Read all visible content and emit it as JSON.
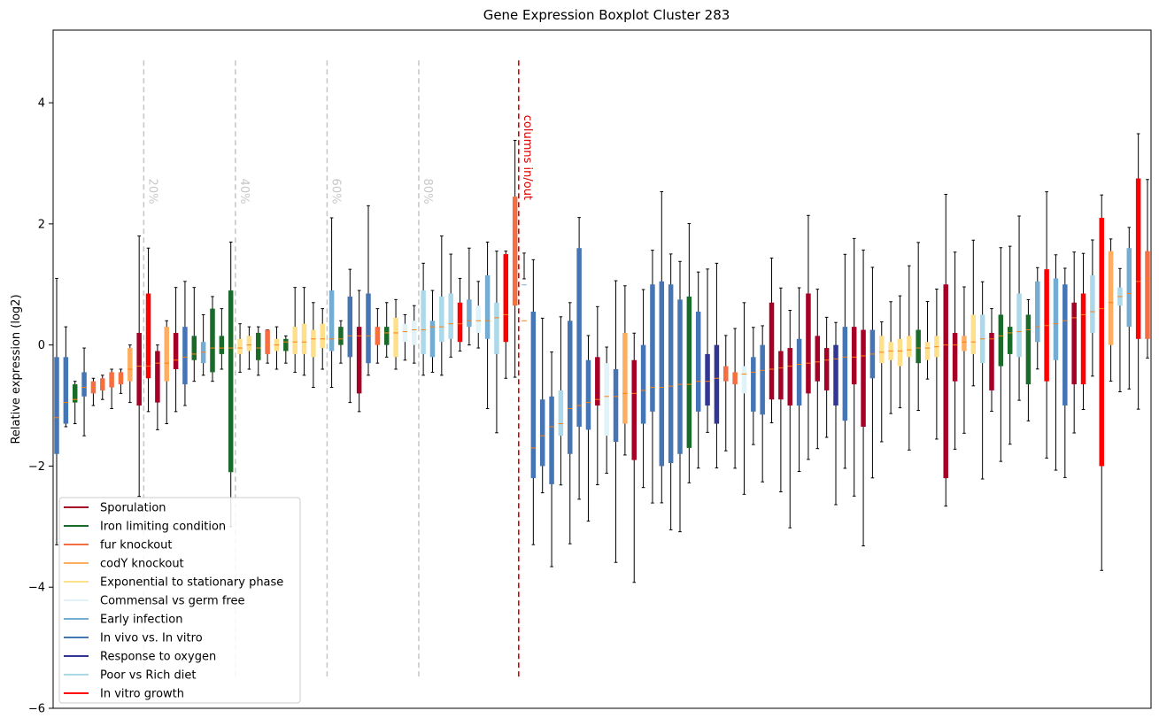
{
  "chart_data": {
    "type": "boxplot",
    "title": "Gene Expression Boxplot Cluster 283",
    "ylabel": "Relative expression (log2)",
    "xlabel": "",
    "ylim": [
      -6,
      5.2
    ],
    "yticks": [
      -6,
      -4,
      -2,
      0,
      2,
      4
    ],
    "ytick_labels": [
      "−6",
      "−4",
      "−2",
      "0",
      "2",
      "4"
    ],
    "grid": false,
    "legend_position": "lower-left",
    "colors": {
      "sporulation": "#a50026",
      "iron": "#1a6b2a",
      "fur": "#f46d43",
      "cody": "#fdae61",
      "expo": "#fee08b",
      "commensal": "#e0f3f8",
      "early": "#74add1",
      "invivo": "#4575b4",
      "oxygen": "#313695",
      "diet": "#abd9e9",
      "vitro": "#ff0000",
      "median": "#ff7f0e",
      "whisker": "#000000",
      "percent_line": "#c8c8c8",
      "split_line": "#dd0000"
    },
    "legend": [
      {
        "label": "Sporulation",
        "key": "sporulation"
      },
      {
        "label": "Iron limiting condition",
        "key": "iron"
      },
      {
        "label": "fur knockout",
        "key": "fur"
      },
      {
        "label": "codY knockout",
        "key": "cody"
      },
      {
        "label": "Exponential to stationary phase",
        "key": "expo"
      },
      {
        "label": "Commensal vs germ free",
        "key": "commensal"
      },
      {
        "label": "Early infection",
        "key": "early"
      },
      {
        "label": "In vivo vs. In vitro",
        "key": "invivo"
      },
      {
        "label": "Response to oxygen",
        "key": "oxygen"
      },
      {
        "label": "Poor vs Rich diet",
        "key": "diet"
      },
      {
        "label": "In vitro growth",
        "key": "vitro"
      }
    ],
    "vertical_lines": [
      {
        "position": 9.5,
        "label": "20%",
        "kind": "percent"
      },
      {
        "position": 19.5,
        "label": "40%",
        "kind": "percent"
      },
      {
        "position": 29.5,
        "label": "60%",
        "kind": "percent"
      },
      {
        "position": 39.5,
        "label": "80%",
        "kind": "percent"
      },
      {
        "position": 50.4,
        "label": "columns in/out",
        "kind": "split"
      }
    ],
    "x_domain": [
      -0.5,
      104.5
    ],
    "boxes": [
      {
        "c": "invivo",
        "q1": -1.8,
        "q3": -0.2,
        "median": -1.2,
        "lo": -3.3,
        "hi": 1.1
      },
      {
        "c": "invivo",
        "q1": -1.3,
        "q3": -0.2,
        "median": -0.95,
        "lo": -1.35,
        "hi": 0.3
      },
      {
        "c": "iron",
        "q1": -0.95,
        "q3": -0.65,
        "median": -0.9,
        "lo": -1.3,
        "hi": -0.6
      },
      {
        "c": "invivo",
        "q1": -0.85,
        "q3": -0.45,
        "median": -0.7,
        "lo": -1.5,
        "hi": -0.05
      },
      {
        "c": "fur",
        "q1": -0.8,
        "q3": -0.6,
        "median": -0.7,
        "lo": -1.0,
        "hi": -0.55
      },
      {
        "c": "fur",
        "q1": -0.75,
        "q3": -0.55,
        "median": -0.65,
        "lo": -0.9,
        "hi": -0.5
      },
      {
        "c": "fur",
        "q1": -0.7,
        "q3": -0.45,
        "median": -0.58,
        "lo": -1.05,
        "hi": -0.4
      },
      {
        "c": "fur",
        "q1": -0.65,
        "q3": -0.45,
        "median": -0.55,
        "lo": -0.8,
        "hi": -0.4
      },
      {
        "c": "cody",
        "q1": -0.6,
        "q3": -0.05,
        "median": -0.4,
        "lo": -0.95,
        "hi": -0.0
      },
      {
        "c": "sporulation",
        "q1": -1.0,
        "q3": 0.2,
        "median": -0.35,
        "lo": -2.5,
        "hi": 1.8
      },
      {
        "c": "vitro",
        "q1": -0.55,
        "q3": 0.85,
        "median": -0.35,
        "lo": -1.1,
        "hi": 1.6
      },
      {
        "c": "sporulation",
        "q1": -0.95,
        "q3": -0.1,
        "median": -0.3,
        "lo": -1.4,
        "hi": 0.0
      },
      {
        "c": "cody",
        "q1": -0.6,
        "q3": 0.3,
        "median": -0.3,
        "lo": -1.3,
        "hi": 0.4
      },
      {
        "c": "sporulation",
        "q1": -0.4,
        "q3": 0.2,
        "median": -0.25,
        "lo": -1.1,
        "hi": 0.95
      },
      {
        "c": "invivo",
        "q1": -0.65,
        "q3": 0.3,
        "median": -0.2,
        "lo": -1.0,
        "hi": 1.05
      },
      {
        "c": "iron",
        "q1": -0.25,
        "q3": 0.15,
        "median": -0.15,
        "lo": -0.6,
        "hi": 0.95
      },
      {
        "c": "early",
        "q1": -0.3,
        "q3": 0.05,
        "median": -0.12,
        "lo": -0.5,
        "hi": 0.5
      },
      {
        "c": "iron",
        "q1": -0.45,
        "q3": 0.6,
        "median": -0.05,
        "lo": -0.6,
        "hi": 0.8
      },
      {
        "c": "iron",
        "q1": -0.15,
        "q3": 0.15,
        "median": -0.05,
        "lo": -0.4,
        "hi": 0.6
      },
      {
        "c": "iron",
        "q1": -2.1,
        "q3": 0.9,
        "median": -0.05,
        "lo": -3.0,
        "hi": 1.7
      },
      {
        "c": "expo",
        "q1": -0.15,
        "q3": 0.1,
        "median": -0.05,
        "lo": -0.45,
        "hi": 0.35
      },
      {
        "c": "expo",
        "q1": -0.1,
        "q3": 0.15,
        "median": 0.0,
        "lo": -0.4,
        "hi": 0.3
      },
      {
        "c": "iron",
        "q1": -0.25,
        "q3": 0.2,
        "median": -0.05,
        "lo": -0.5,
        "hi": 0.3
      },
      {
        "c": "fur",
        "q1": -0.15,
        "q3": 0.25,
        "median": 0.0,
        "lo": -0.3,
        "hi": 0.25
      },
      {
        "c": "expo",
        "q1": -0.1,
        "q3": 0.1,
        "median": 0.0,
        "lo": -0.4,
        "hi": 0.3
      },
      {
        "c": "iron",
        "q1": -0.1,
        "q3": 0.1,
        "median": 0.05,
        "lo": -0.3,
        "hi": 0.15
      },
      {
        "c": "expo",
        "q1": -0.15,
        "q3": 0.3,
        "median": 0.05,
        "lo": -0.45,
        "hi": 0.95
      },
      {
        "c": "expo",
        "q1": -0.15,
        "q3": 0.35,
        "median": 0.05,
        "lo": -0.5,
        "hi": 0.95
      },
      {
        "c": "expo",
        "q1": -0.2,
        "q3": 0.25,
        "median": 0.1,
        "lo": -0.7,
        "hi": 0.7
      },
      {
        "c": "expo",
        "q1": -0.05,
        "q3": 0.35,
        "median": 0.1,
        "lo": -0.4,
        "hi": 0.6
      },
      {
        "c": "early",
        "q1": -0.1,
        "q3": 0.9,
        "median": 0.1,
        "lo": -0.7,
        "hi": 2.1
      },
      {
        "c": "iron",
        "q1": 0.0,
        "q3": 0.3,
        "median": 0.1,
        "lo": -0.3,
        "hi": 0.4
      },
      {
        "c": "invivo",
        "q1": -0.2,
        "q3": 0.8,
        "median": 0.15,
        "lo": -0.95,
        "hi": 1.25
      },
      {
        "c": "sporulation",
        "q1": -0.8,
        "q3": 0.3,
        "median": 0.15,
        "lo": -1.1,
        "hi": 0.9
      },
      {
        "c": "invivo",
        "q1": -0.3,
        "q3": 0.85,
        "median": 0.15,
        "lo": -0.5,
        "hi": 2.3
      },
      {
        "c": "fur",
        "q1": 0.0,
        "q3": 0.3,
        "median": 0.2,
        "lo": -0.3,
        "hi": 0.6
      },
      {
        "c": "iron",
        "q1": 0.0,
        "q3": 0.3,
        "median": 0.2,
        "lo": -0.2,
        "hi": 0.7
      },
      {
        "c": "expo",
        "q1": -0.2,
        "q3": 0.45,
        "median": 0.2,
        "lo": -0.4,
        "hi": 0.75
      },
      {
        "c": "commensal",
        "q1": 0.05,
        "q3": 0.35,
        "median": 0.22,
        "lo": -0.25,
        "hi": 0.5
      },
      {
        "c": "commensal",
        "q1": 0.0,
        "q3": 0.4,
        "median": 0.25,
        "lo": -0.3,
        "hi": 0.65
      },
      {
        "c": "diet",
        "q1": -0.15,
        "q3": 0.9,
        "median": 0.25,
        "lo": -0.5,
        "hi": 1.35
      },
      {
        "c": "early",
        "q1": -0.2,
        "q3": 0.4,
        "median": 0.3,
        "lo": -0.45,
        "hi": 0.9
      },
      {
        "c": "diet",
        "q1": 0.05,
        "q3": 0.8,
        "median": 0.3,
        "lo": -0.5,
        "hi": 1.8
      },
      {
        "c": "diet",
        "q1": 0.1,
        "q3": 0.85,
        "median": 0.35,
        "lo": -0.2,
        "hi": 1.5
      },
      {
        "c": "vitro",
        "q1": 0.05,
        "q3": 0.7,
        "median": 0.35,
        "lo": -0.1,
        "hi": 1.1
      },
      {
        "c": "early",
        "q1": 0.3,
        "q3": 0.75,
        "median": 0.4,
        "lo": 0.0,
        "hi": 1.6
      },
      {
        "c": "commensal",
        "q1": 0.2,
        "q3": 0.65,
        "median": 0.4,
        "lo": -0.05,
        "hi": 1.05
      },
      {
        "c": "early",
        "q1": 0.1,
        "q3": 1.15,
        "median": 0.4,
        "lo": -1.05,
        "hi": 1.7
      },
      {
        "c": "diet",
        "q1": -0.15,
        "q3": 0.7,
        "median": 0.45,
        "lo": -1.45,
        "hi": 1.55
      },
      {
        "c": "vitro",
        "q1": 0.05,
        "q3": 1.5,
        "median": 0.5,
        "lo": -0.55,
        "hi": 1.55
      }
    ]
  }
}
